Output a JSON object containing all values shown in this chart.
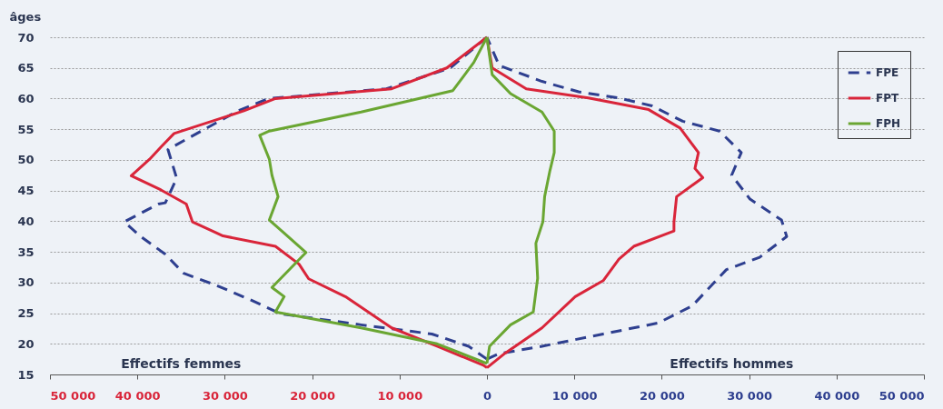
{
  "chart_data": {
    "type": "line",
    "orientation": "horizontal",
    "ylabel": "âges",
    "annotations": [
      "Effectifs femmes",
      "Effectifs hommes"
    ],
    "xlim": [
      -50000,
      50000
    ],
    "xticks": [
      {
        "value": -50000,
        "label": "50 000"
      },
      {
        "value": -40000,
        "label": "40 000"
      },
      {
        "value": -30000,
        "label": "30 000"
      },
      {
        "value": -20000,
        "label": "20 000"
      },
      {
        "value": -10000,
        "label": "10 000"
      },
      0,
      {
        "value": 10000,
        "label": "10 000"
      },
      {
        "value": 20000,
        "label": "20 000"
      },
      {
        "value": 30000,
        "label": "30 000"
      },
      {
        "value": 40000,
        "label": "40 000"
      },
      {
        "value": 50000,
        "label": "50 000"
      }
    ],
    "ylim": [
      15,
      70
    ],
    "yticks": [
      15,
      20,
      25,
      30,
      35,
      40,
      45,
      50,
      55,
      60,
      65,
      70
    ],
    "grid": "y",
    "legend": "top right",
    "marker": "none",
    "series": [
      {
        "name": "FPE",
        "color": "#2e3f8f",
        "line_style": "dashed",
        "x": [
          70,
          65,
          61.6,
          60,
          58,
          51.7,
          47,
          43,
          42.8,
          39.9,
          37.6,
          34.6,
          31.5,
          29.5,
          27.2,
          24.9,
          23.1,
          21.6,
          19.6,
          17.5
        ],
        "values": [
          0,
          -4200,
          -11500,
          -25000,
          -28500,
          -36500,
          -35500,
          -36800,
          -37600,
          -41500,
          -39700,
          -36800,
          -34700,
          -30900,
          -27100,
          -23600,
          -14400,
          -6300,
          -2100,
          0
        ]
      },
      {
        "color": "#2e3f8f",
        "line_style": "dashed",
        "x": [
          17.5,
          18.4,
          19.6,
          21.6,
          23.4,
          26.2,
          32.1,
          34.1,
          37.5,
          40.2,
          43.6,
          47.5,
          51.2,
          54.7,
          56.3,
          58.8,
          60.1,
          61.1,
          62.8,
          65.4,
          70
        ],
        "values": [
          0,
          1400,
          6300,
          13300,
          19600,
          23500,
          27400,
          31200,
          34300,
          33700,
          30100,
          28000,
          29100,
          26600,
          22400,
          18900,
          15100,
          10500,
          6300,
          1400,
          0
        ]
      },
      {
        "name": "FPT",
        "color": "#d9253a",
        "line_style": "solid",
        "x": [
          70,
          65,
          61.6,
          60,
          58,
          54.3,
          52.1,
          50.1,
          47.4,
          45.1,
          42.8,
          39.9,
          37.6,
          35.9,
          33,
          30.6,
          27.7,
          22.6,
          19.6,
          16.5,
          16.1
        ],
        "values": [
          0,
          -4600,
          -10900,
          -24200,
          -27800,
          -35800,
          -37300,
          -38600,
          -40700,
          -37300,
          -34400,
          -33700,
          -30200,
          -24200,
          -21500,
          -20400,
          -16200,
          -10900,
          -5700,
          -400,
          0
        ]
      },
      {
        "color": "#d9253a",
        "line_style": "solid",
        "x": [
          16.1,
          18.5,
          22.6,
          27.7,
          30.3,
          33.8,
          35.9,
          38.4,
          39.9,
          44,
          47.1,
          48.6,
          51.2,
          55.2,
          58.2,
          60.1,
          61.6,
          65,
          70
        ],
        "values": [
          0,
          2100,
          6300,
          10100,
          13300,
          15100,
          16800,
          21400,
          21400,
          21700,
          24700,
          23800,
          24200,
          22100,
          18500,
          11600,
          4500,
          600,
          0
        ]
      },
      {
        "name": "FPH",
        "color": "#6aa632",
        "line_style": "solid",
        "x": [
          70,
          65.9,
          61.3,
          57.8,
          54.7,
          54,
          50.1,
          47.5,
          44,
          40.2,
          34.9,
          29.2,
          27.7,
          25.2,
          22.6,
          20,
          17,
          16.8
        ],
        "values": [
          0,
          -1500,
          -3900,
          -14400,
          -24900,
          -26000,
          -24900,
          -24600,
          -23900,
          -24900,
          -20700,
          -24600,
          -23200,
          -24200,
          -14400,
          -5700,
          -400,
          0
        ]
      },
      {
        "color": "#6aa632",
        "line_style": "solid",
        "x": [
          16.8,
          19.6,
          23.1,
          25.2,
          30.7,
          36.4,
          39.9,
          44,
          48.2,
          51.2,
          54.7,
          57.8,
          60.8,
          63.9,
          70
        ],
        "values": [
          0,
          300,
          2700,
          5300,
          5800,
          5600,
          6400,
          6600,
          7200,
          7700,
          7700,
          6300,
          2700,
          600,
          0
        ]
      }
    ]
  }
}
